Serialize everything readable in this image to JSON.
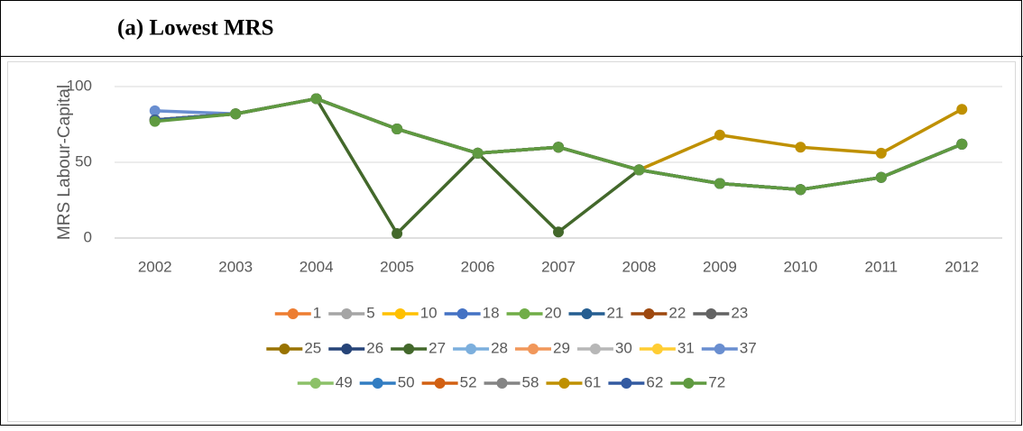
{
  "chart_data": {
    "type": "line",
    "title": "(a)  Lowest MRS",
    "y_label": "MRS Labour-Capital",
    "categories": [
      "2002",
      "2003",
      "2004",
      "2005",
      "2006",
      "2007",
      "2008",
      "2009",
      "2010",
      "2011",
      "2012"
    ],
    "ylim": [
      0,
      100
    ],
    "yticks": [
      0,
      50,
      100
    ],
    "grid": true,
    "series": [
      {
        "name": "1",
        "color": "#ed7d31",
        "values": [
          78,
          82,
          92,
          72,
          56,
          60,
          45,
          36,
          32,
          40,
          62
        ]
      },
      {
        "name": "5",
        "color": "#a5a5a5",
        "values": [
          78,
          82,
          92,
          72,
          56,
          60,
          45,
          36,
          32,
          40,
          62
        ]
      },
      {
        "name": "10",
        "color": "#ffc000",
        "values": [
          78,
          82,
          92,
          72,
          56,
          60,
          45,
          36,
          32,
          40,
          62
        ]
      },
      {
        "name": "18",
        "color": "#4472c4",
        "values": [
          78,
          82,
          92,
          72,
          56,
          60,
          45,
          36,
          32,
          40,
          62
        ]
      },
      {
        "name": "20",
        "color": "#70ad47",
        "values": [
          78,
          82,
          92,
          72,
          56,
          60,
          45,
          36,
          32,
          40,
          62
        ]
      },
      {
        "name": "21",
        "color": "#255e91",
        "values": [
          78,
          82,
          92,
          72,
          56,
          60,
          45,
          36,
          32,
          40,
          62
        ]
      },
      {
        "name": "22",
        "color": "#9e480e",
        "values": [
          78,
          82,
          92,
          72,
          56,
          60,
          45,
          36,
          32,
          40,
          62
        ]
      },
      {
        "name": "23",
        "color": "#636363",
        "values": [
          78,
          82,
          92,
          72,
          56,
          60,
          45,
          36,
          32,
          40,
          62
        ]
      },
      {
        "name": "25",
        "color": "#997300",
        "values": [
          78,
          82,
          92,
          72,
          56,
          60,
          45,
          36,
          32,
          40,
          62
        ]
      },
      {
        "name": "26",
        "color": "#264478",
        "values": [
          78,
          82,
          92,
          72,
          56,
          60,
          45,
          36,
          32,
          40,
          62
        ]
      },
      {
        "name": "27",
        "color": "#43682b",
        "values": [
          78,
          82,
          92,
          3,
          56,
          4,
          45,
          36,
          32,
          40,
          62
        ]
      },
      {
        "name": "28",
        "color": "#7cafdd",
        "values": [
          78,
          82,
          92,
          72,
          56,
          60,
          45,
          36,
          32,
          40,
          62
        ]
      },
      {
        "name": "29",
        "color": "#f1975a",
        "values": [
          78,
          82,
          92,
          72,
          56,
          60,
          45,
          36,
          32,
          40,
          62
        ]
      },
      {
        "name": "30",
        "color": "#b7b7b7",
        "values": [
          78,
          82,
          92,
          72,
          56,
          60,
          45,
          36,
          32,
          40,
          62
        ]
      },
      {
        "name": "31",
        "color": "#ffcd33",
        "values": [
          78,
          82,
          92,
          72,
          56,
          60,
          45,
          36,
          32,
          40,
          62
        ]
      },
      {
        "name": "37",
        "color": "#698ed0",
        "values": [
          84,
          82,
          92,
          72,
          56,
          60,
          45,
          36,
          32,
          40,
          62
        ]
      },
      {
        "name": "49",
        "color": "#8cc168",
        "values": [
          78,
          82,
          92,
          72,
          56,
          60,
          45,
          36,
          32,
          40,
          62
        ]
      },
      {
        "name": "50",
        "color": "#327dc2",
        "values": [
          78,
          82,
          92,
          72,
          56,
          60,
          45,
          36,
          32,
          40,
          62
        ]
      },
      {
        "name": "52",
        "color": "#d26012",
        "values": [
          78,
          82,
          92,
          72,
          56,
          60,
          45,
          36,
          32,
          40,
          62
        ]
      },
      {
        "name": "58",
        "color": "#848484",
        "values": [
          78,
          82,
          92,
          72,
          56,
          60,
          45,
          36,
          32,
          40,
          62
        ]
      },
      {
        "name": "61",
        "color": "#bf9000",
        "values": [
          78,
          82,
          92,
          72,
          56,
          60,
          45,
          68,
          60,
          56,
          85
        ]
      },
      {
        "name": "62",
        "color": "#335aa1",
        "values": [
          78,
          82,
          92,
          72,
          56,
          60,
          45,
          36,
          32,
          40,
          62
        ]
      },
      {
        "name": "72",
        "color": "#5f9a40",
        "values": [
          77,
          82,
          92,
          72,
          56,
          60,
          45,
          36,
          32,
          40,
          62
        ]
      }
    ]
  }
}
